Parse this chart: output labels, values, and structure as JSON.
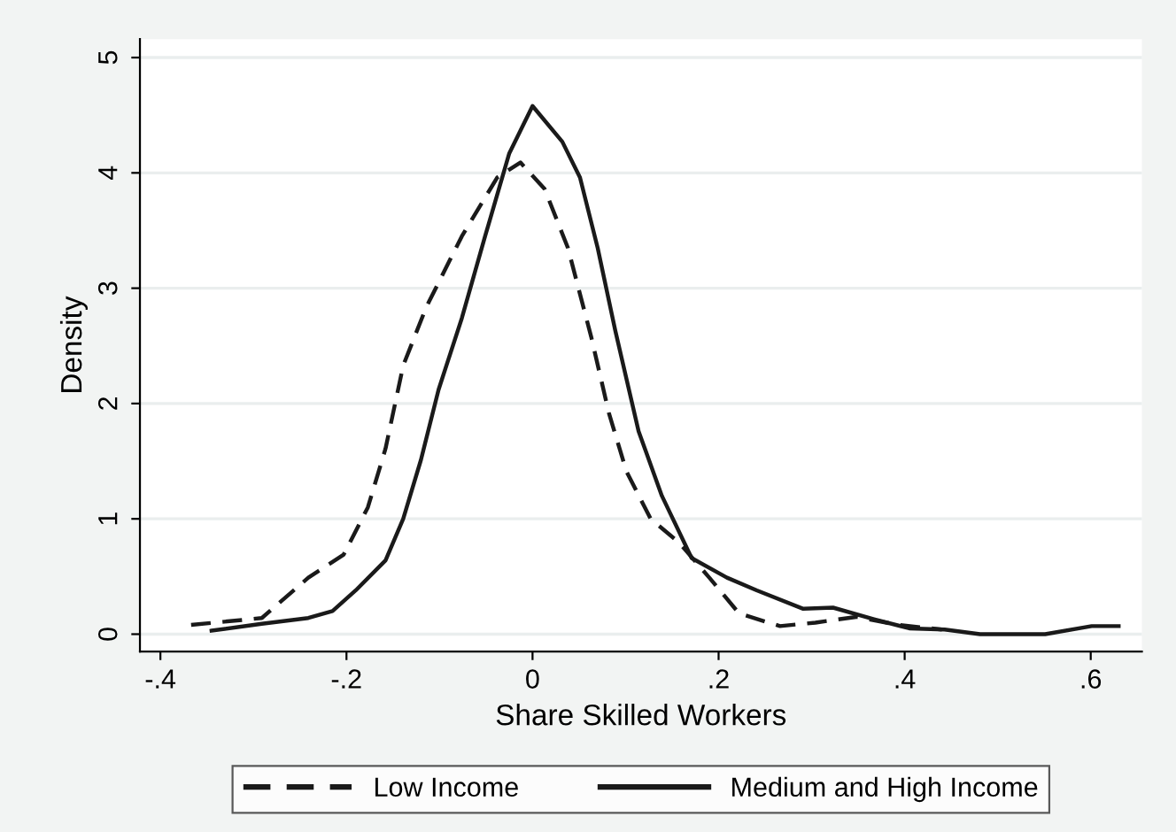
{
  "chart_data": {
    "type": "line",
    "xlabel": "Share Skilled Workers",
    "ylabel": "Density",
    "xlim": [
      -0.422,
      0.655
    ],
    "xticks": [
      {
        "value": -0.4,
        "label": "-.4"
      },
      {
        "value": -0.2,
        "label": "-.2"
      },
      0,
      {
        "value": 0.2,
        "label": ".2"
      },
      {
        "value": 0.4,
        "label": ".4"
      },
      {
        "value": 0.6,
        "label": ".6"
      }
    ],
    "ylim": [
      -0.15,
      5.16
    ],
    "yticks": [
      0,
      1,
      2,
      3,
      4,
      5
    ],
    "grid": "y",
    "legend": "bottom",
    "series": [
      {
        "name": "Low Income",
        "color": "#1a1a1a",
        "line_style": "dashed",
        "x": [
          -0.367,
          -0.291,
          -0.241,
          -0.203,
          -0.177,
          -0.158,
          -0.139,
          -0.114,
          -0.076,
          -0.038,
          -0.013,
          0.013,
          0.038,
          0.063,
          0.082,
          0.101,
          0.127,
          0.158,
          0.19,
          0.222,
          0.266,
          0.304,
          0.348,
          0.393,
          0.44
        ],
        "values": [
          0.08,
          0.14,
          0.49,
          0.69,
          1.1,
          1.61,
          2.33,
          2.84,
          3.45,
          3.96,
          4.09,
          3.86,
          3.35,
          2.58,
          1.92,
          1.41,
          1.0,
          0.79,
          0.49,
          0.18,
          0.07,
          0.1,
          0.15,
          0.08,
          0.04
        ]
      },
      {
        "name": "Medium and High Income",
        "color": "#1a1a1a",
        "line_style": "solid",
        "x": [
          -0.345,
          -0.291,
          -0.241,
          -0.215,
          -0.19,
          -0.158,
          -0.139,
          -0.12,
          -0.101,
          -0.076,
          -0.051,
          -0.025,
          0.0,
          0.032,
          0.051,
          0.07,
          0.089,
          0.114,
          0.139,
          0.171,
          0.209,
          0.241,
          0.291,
          0.323,
          0.367,
          0.405,
          0.443,
          0.481,
          0.551,
          0.601,
          0.63
        ],
        "values": [
          0.03,
          0.09,
          0.14,
          0.2,
          0.38,
          0.64,
          1.0,
          1.51,
          2.12,
          2.74,
          3.45,
          4.17,
          4.58,
          4.27,
          3.96,
          3.35,
          2.63,
          1.76,
          1.2,
          0.66,
          0.49,
          0.38,
          0.22,
          0.23,
          0.13,
          0.05,
          0.04,
          0.0,
          0.0,
          0.07,
          0.07
        ]
      }
    ]
  }
}
